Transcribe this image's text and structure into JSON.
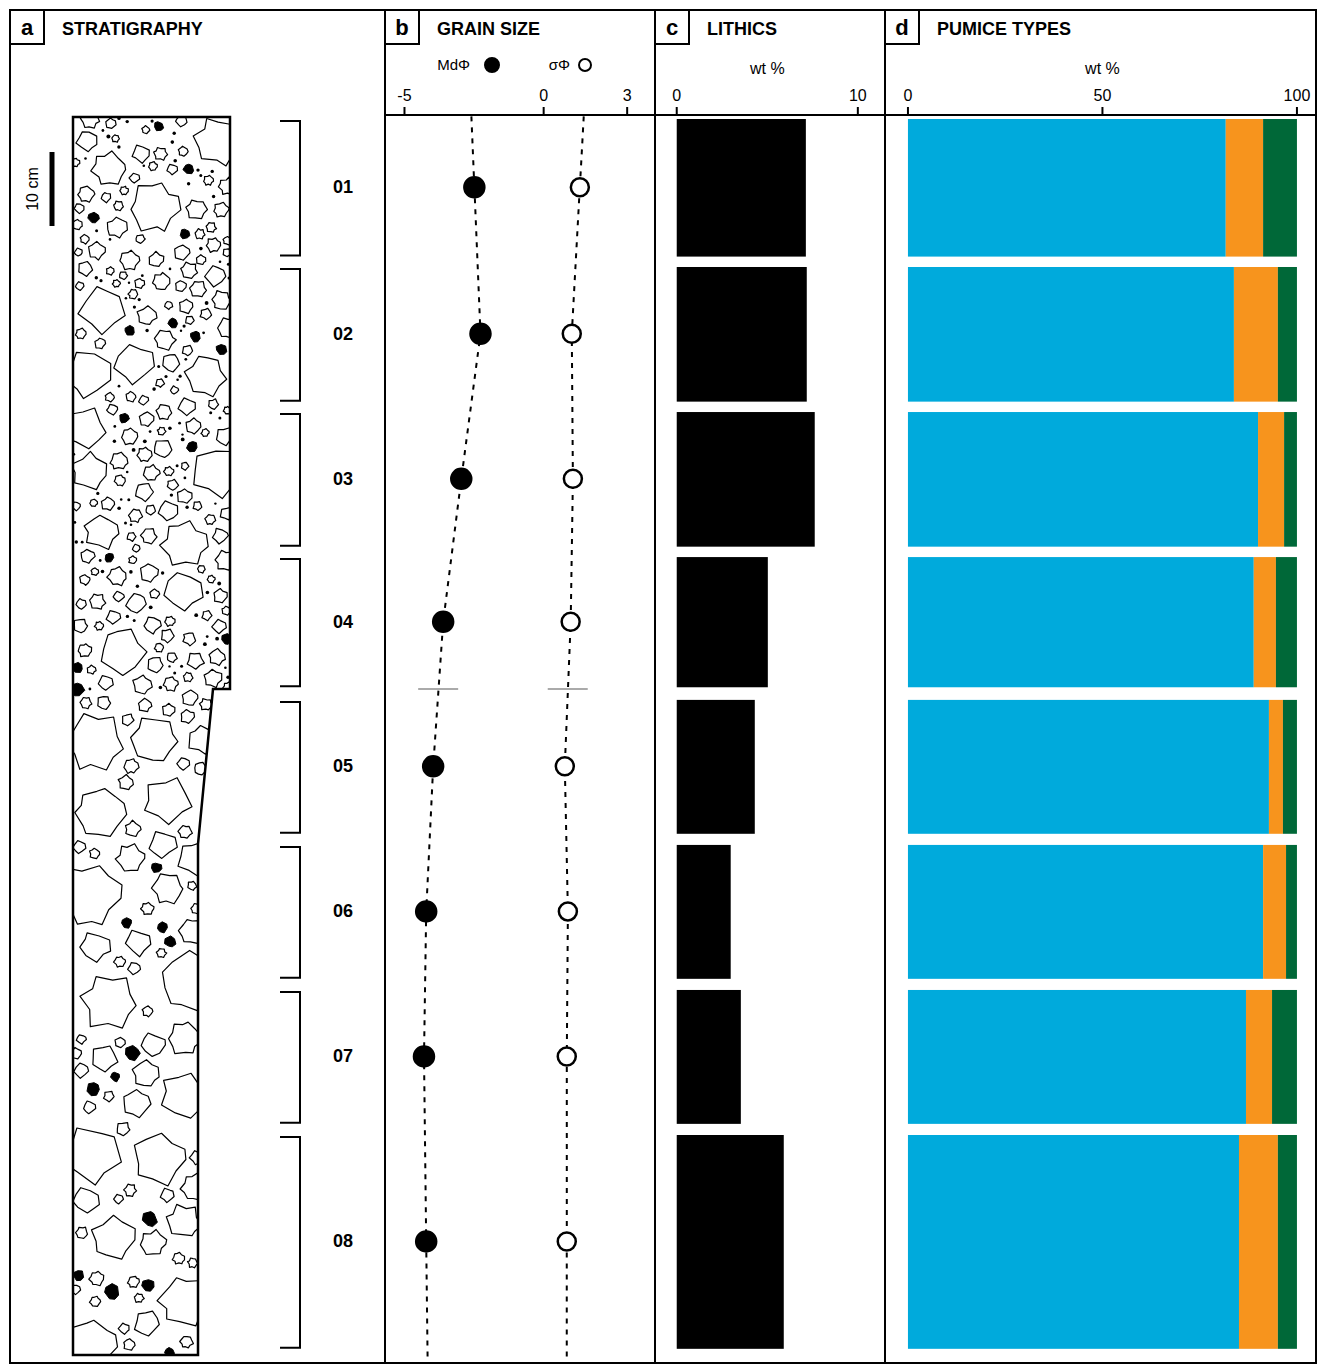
{
  "chart_data": [
    {
      "type": "stratigraphic_column",
      "panel": "a",
      "title": "STRATIGRAPHY",
      "ylim": [
        0,
        167.3
      ],
      "scale_bar": {
        "value": 10,
        "label": "10 cm"
      },
      "contact": 77.3,
      "categories": [
        "01",
        "02",
        "03",
        "04",
        "05",
        "06",
        "07",
        "08"
      ],
      "intervals": [
        [
          0,
          19
        ],
        [
          20,
          38.6
        ],
        [
          39.6,
          58.2
        ],
        [
          59.2,
          77.2
        ],
        [
          78.5,
          97
        ],
        [
          98.1,
          116.6
        ],
        [
          117.7,
          136.2
        ],
        [
          137.3,
          166.6
        ]
      ]
    },
    {
      "type": "scatter",
      "panel": "b",
      "title": "GRAIN SIZE",
      "xlim": [
        -5.7,
        4
      ],
      "xticks": [
        -5,
        0,
        3
      ],
      "line_style": "dashed",
      "series": [
        {
          "name": "MdΦ",
          "marker": "filled",
          "color": "#000000",
          "values": [
            -2.49,
            -2.27,
            -2.96,
            -3.61,
            -3.97,
            -4.22,
            -4.3,
            -4.22
          ]
        },
        {
          "name": "σΦ",
          "marker": "open",
          "color": "#000000",
          "values": [
            1.3,
            1.01,
            1.05,
            0.97,
            0.76,
            0.87,
            0.83,
            0.83
          ]
        }
      ]
    },
    {
      "type": "bar",
      "orientation": "horizontal",
      "panel": "c",
      "title": "LITHICS",
      "xlabel": "wt %",
      "xlim": [
        -1.2,
        11.5
      ],
      "xticks": [
        0,
        10
      ],
      "color": "#000000",
      "values": [
        7.13,
        7.18,
        7.62,
        5.03,
        4.31,
        2.98,
        3.54,
        5.91
      ]
    },
    {
      "type": "bar",
      "orientation": "horizontal",
      "stacked": true,
      "panel": "d",
      "title": "PUMICE TYPES",
      "xlabel": "wt %",
      "xlim": [
        -5.9,
        104.9
      ],
      "xticks": [
        0,
        50,
        100
      ],
      "series": [
        {
          "color": "#00aadc",
          "values": [
            81.7,
            83.8,
            90.0,
            88.9,
            92.8,
            91.3,
            86.9,
            85.1
          ]
        },
        {
          "color": "#f7941d",
          "values": [
            9.6,
            11.3,
            6.7,
            5.7,
            3.6,
            5.9,
            6.7,
            10.0
          ]
        },
        {
          "color": "#006838",
          "values": [
            8.7,
            4.9,
            3.3,
            5.4,
            3.6,
            2.8,
            6.4,
            4.9
          ]
        }
      ]
    }
  ]
}
